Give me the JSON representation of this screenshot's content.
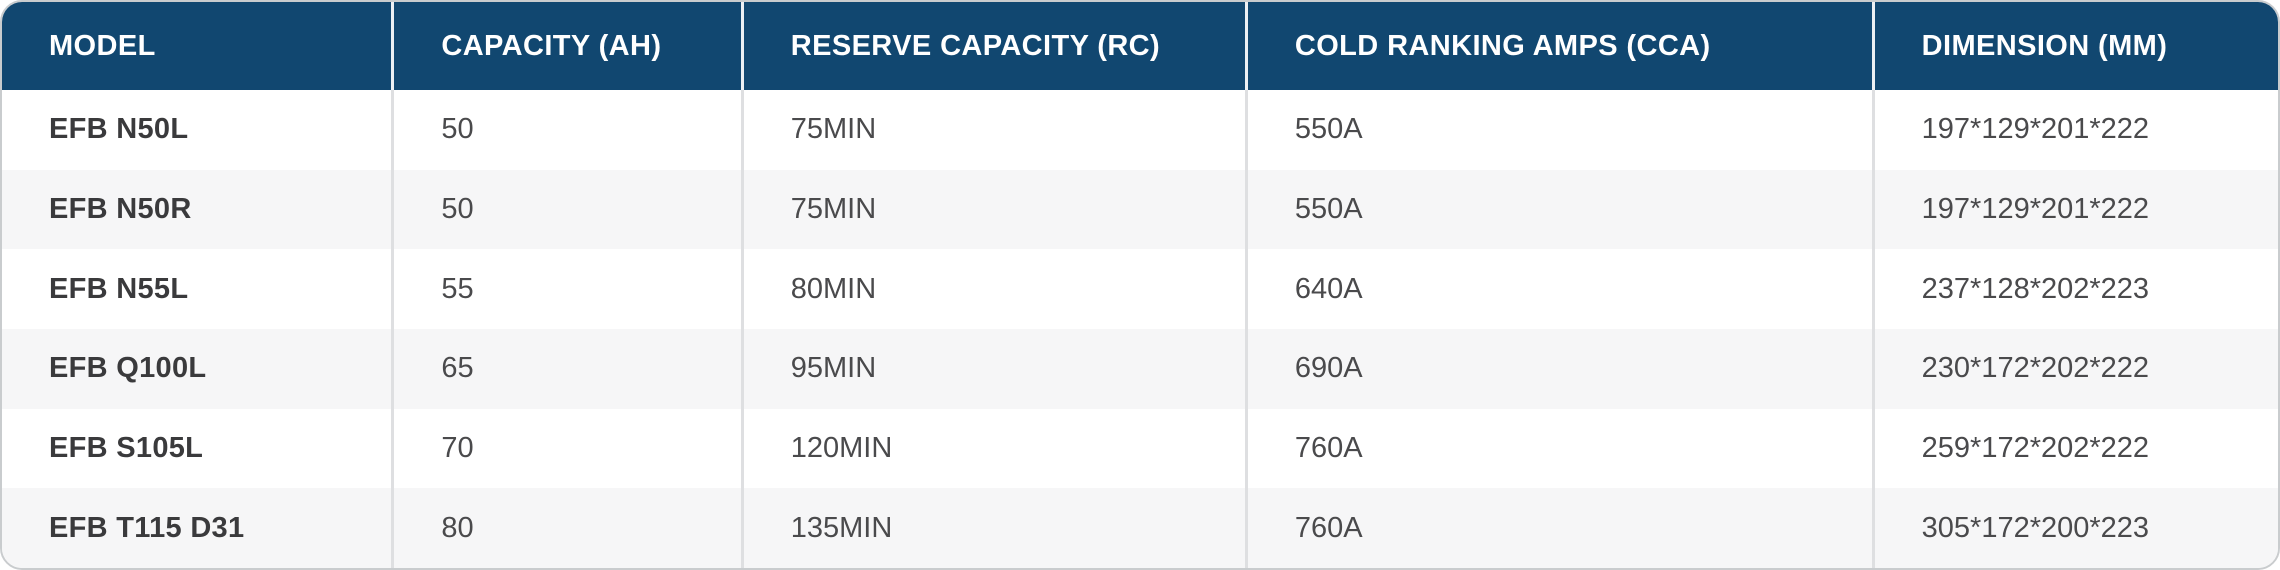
{
  "chart_data": {
    "type": "table",
    "columns": [
      "MODEL",
      "CAPACITY (AH)",
      "RESERVE CAPACITY (RC)",
      "COLD RANKING AMPS (CCA)",
      "DIMENSION (MM)"
    ],
    "rows": [
      [
        "EFB N50L",
        "50",
        "75MIN",
        "550A",
        "197*129*201*222"
      ],
      [
        "EFB N50R",
        "50",
        "75MIN",
        "550A",
        "197*129*201*222"
      ],
      [
        "EFB N55L",
        "55",
        "80MIN",
        "640A",
        "237*128*202*223"
      ],
      [
        "EFB Q100L",
        "65",
        "95MIN",
        "690A",
        "230*172*202*222"
      ],
      [
        "EFB S105L",
        "70",
        "120MIN",
        "760A",
        "259*172*202*222"
      ],
      [
        "EFB T115 D31",
        "80",
        "135MIN",
        "760A",
        "305*172*200*223"
      ]
    ]
  },
  "colors": {
    "header_bg": "#114770",
    "header_text": "#FFFFFF",
    "header_divider": "#FFFFFF",
    "row_bg": "#FFFFFF",
    "row_alt_bg": "#F6F6F7",
    "body_divider": "#DEDFE1",
    "model_text": "#3A3A3C",
    "value_text": "#4A4A4C",
    "outer_border": "#C9CCCE"
  }
}
